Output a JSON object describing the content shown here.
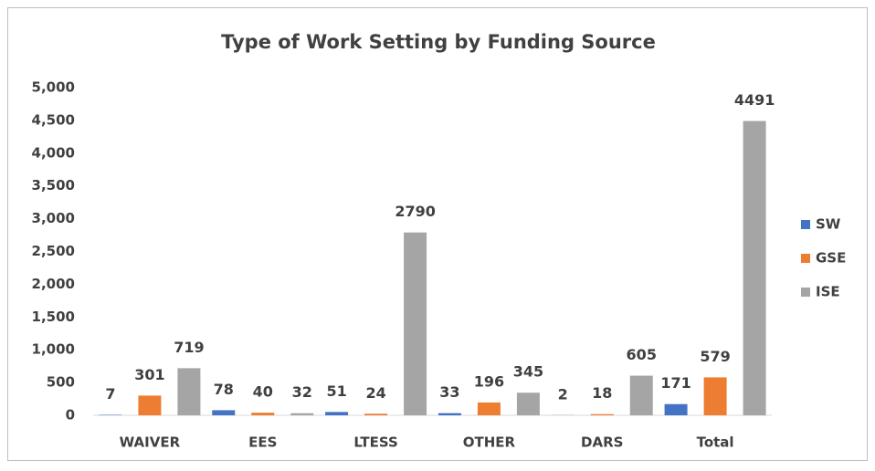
{
  "chart_data": {
    "type": "bar",
    "title": "Type of Work Setting by Funding Source",
    "categories": [
      "WAIVER",
      "EES",
      "LTESS",
      "OTHER",
      "DARS",
      "Total"
    ],
    "series": [
      {
        "name": "SW",
        "color": "#4472c4",
        "values": [
          7,
          78,
          51,
          33,
          2,
          171
        ]
      },
      {
        "name": "GSE",
        "color": "#ed7d31",
        "values": [
          301,
          40,
          24,
          196,
          18,
          579
        ]
      },
      {
        "name": "ISE",
        "color": "#a5a5a5",
        "values": [
          719,
          32,
          2790,
          345,
          605,
          4491
        ]
      }
    ],
    "ylim": [
      0,
      5000
    ],
    "yticks": [
      0,
      500,
      {
        "value": 1000,
        "label": "1,000"
      },
      {
        "value": 1500,
        "label": "1,500"
      },
      {
        "value": 2000,
        "label": "2,000"
      },
      {
        "value": 2500,
        "label": "2,500"
      },
      {
        "value": 3000,
        "label": "3,000"
      },
      {
        "value": 3500,
        "label": "3,500"
      },
      {
        "value": 4000,
        "label": "4,000"
      },
      {
        "value": 4500,
        "label": "4,500"
      },
      {
        "value": 5000,
        "label": "5,000"
      }
    ],
    "grid": false,
    "legend": "right"
  }
}
